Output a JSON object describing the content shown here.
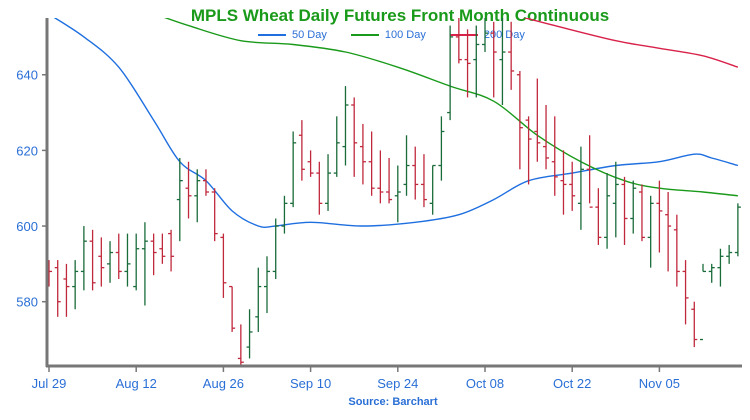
{
  "chart_data": {
    "type": "ohlc",
    "title": "MPLS Wheat Daily Futures Front Month Continuous",
    "source": "Source: Barchart",
    "ylim": [
      563,
      655
    ],
    "y_ticks": [
      580,
      600,
      620,
      640
    ],
    "x_tick_labels": [
      "Jul 29",
      "Aug 12",
      "Aug 26",
      "Sep 10",
      "Sep 24",
      "Oct 08",
      "Oct 22",
      "Nov 05"
    ],
    "x_tick_bar_index": [
      0,
      10,
      20,
      30,
      40,
      50,
      60,
      70
    ],
    "colors": {
      "up": "#1a6b3a",
      "down": "#c0283c",
      "ma50": "#1f6fe0",
      "ma100": "#1a9a1a",
      "ma200": "#d8224a",
      "axis": "#777777",
      "label": "#2a6fd6",
      "title": "#1a9a1a"
    },
    "legend": [
      {
        "name": "50 Day",
        "key": "ma50"
      },
      {
        "name": "100 Day",
        "key": "ma100"
      },
      {
        "name": "200 Day",
        "key": "ma200"
      }
    ],
    "bars": [
      [
        589,
        591,
        584,
        588
      ],
      [
        589,
        591,
        576,
        580
      ],
      [
        586,
        590,
        576,
        584
      ],
      [
        584,
        591,
        578,
        588
      ],
      [
        588,
        600,
        583,
        596
      ],
      [
        596,
        599,
        583,
        585
      ],
      [
        592,
        597,
        584,
        589
      ],
      [
        590,
        596,
        585,
        593
      ],
      [
        593,
        598,
        586,
        588
      ],
      [
        588,
        598,
        584,
        590
      ],
      [
        584,
        598,
        583,
        594
      ],
      [
        594,
        601,
        579,
        596
      ],
      [
        596,
        598,
        587,
        593
      ],
      [
        594,
        598,
        590,
        592
      ],
      [
        598,
        599,
        588,
        592
      ],
      [
        607,
        618,
        596,
        612
      ],
      [
        610,
        617,
        602,
        608
      ],
      [
        608,
        615,
        601,
        612
      ],
      [
        612,
        615,
        608,
        609
      ],
      [
        609,
        610,
        596,
        598
      ],
      [
        597,
        598,
        581,
        585
      ],
      [
        584,
        584,
        572,
        573
      ],
      [
        565,
        574,
        563,
        564
      ],
      [
        568,
        578,
        565,
        572
      ],
      [
        576,
        589,
        572,
        584
      ],
      [
        584,
        592,
        577,
        588
      ],
      [
        588,
        602,
        586,
        600
      ],
      [
        600,
        608,
        598,
        606
      ],
      [
        606,
        625,
        605,
        622
      ],
      [
        624,
        628,
        612,
        615
      ],
      [
        617,
        620,
        613,
        614
      ],
      [
        614,
        617,
        603,
        606
      ],
      [
        606,
        619,
        604,
        614
      ],
      [
        614,
        629,
        613,
        622
      ],
      [
        621,
        637,
        616,
        632
      ],
      [
        632,
        634,
        613,
        622
      ],
      [
        621,
        627,
        611,
        617
      ],
      [
        617,
        625,
        608,
        610
      ],
      [
        610,
        620,
        606,
        609
      ],
      [
        609,
        618,
        606,
        607
      ],
      [
        608,
        616,
        601,
        609
      ],
      [
        611,
        624,
        608,
        616
      ],
      [
        616,
        621,
        607,
        611
      ],
      [
        611,
        619,
        605,
        607
      ],
      [
        606,
        616,
        603,
        616
      ],
      [
        616,
        629,
        612,
        625
      ],
      [
        630,
        653,
        628,
        650
      ],
      [
        650,
        655,
        643,
        644
      ],
      [
        644,
        652,
        634,
        643
      ],
      [
        644,
        653,
        634,
        648
      ],
      [
        648,
        655,
        646,
        651
      ],
      [
        651,
        654,
        634,
        646
      ],
      [
        644,
        657,
        632,
        646
      ],
      [
        646,
        654,
        636,
        641
      ],
      [
        640,
        641,
        615,
        626
      ],
      [
        628,
        629,
        611,
        623
      ],
      [
        625,
        639,
        617,
        622
      ],
      [
        621,
        632,
        615,
        618
      ],
      [
        617,
        629,
        608,
        613
      ],
      [
        612,
        620,
        603,
        611
      ],
      [
        611,
        617,
        604,
        608
      ],
      [
        606,
        621,
        599,
        615
      ],
      [
        615,
        624,
        606,
        605
      ],
      [
        605,
        610,
        595,
        597
      ],
      [
        597,
        614,
        594,
        608
      ],
      [
        606,
        617,
        597,
        611
      ],
      [
        611,
        613,
        595,
        602
      ],
      [
        602,
        612,
        598,
        610
      ],
      [
        609,
        611,
        596,
        597
      ],
      [
        597,
        608,
        589,
        606
      ],
      [
        606,
        612,
        593,
        604
      ],
      [
        603,
        609,
        588,
        600
      ],
      [
        599,
        603,
        584,
        588
      ],
      [
        588,
        591,
        574,
        581
      ],
      [
        578,
        580,
        568,
        570
      ],
      [
        570,
        590,
        588,
        588
      ],
      [
        588,
        590,
        585,
        589
      ],
      [
        589,
        594,
        584,
        592
      ],
      [
        592,
        595,
        590,
        593
      ],
      [
        593,
        606,
        592,
        605
      ]
    ],
    "ma50": [
      [
        0,
        656
      ],
      [
        4,
        650
      ],
      [
        8,
        642
      ],
      [
        12,
        628
      ],
      [
        15,
        617
      ],
      [
        18,
        612
      ],
      [
        21,
        604
      ],
      [
        24,
        600
      ],
      [
        26,
        600
      ],
      [
        30,
        601
      ],
      [
        36,
        600
      ],
      [
        42,
        601
      ],
      [
        47,
        603
      ],
      [
        51,
        607
      ],
      [
        55,
        612
      ],
      [
        60,
        614
      ],
      [
        65,
        616
      ],
      [
        70,
        617
      ],
      [
        74,
        619
      ],
      [
        76,
        618
      ],
      [
        79,
        616
      ]
    ],
    "ma100": [
      [
        11,
        657
      ],
      [
        16,
        653
      ],
      [
        22,
        649
      ],
      [
        28,
        648
      ],
      [
        34,
        646
      ],
      [
        40,
        642
      ],
      [
        46,
        637
      ],
      [
        51,
        633
      ],
      [
        56,
        624
      ],
      [
        61,
        617
      ],
      [
        66,
        612
      ],
      [
        70,
        610
      ],
      [
        75,
        609
      ],
      [
        79,
        608
      ]
    ],
    "ma200": [
      [
        53,
        656
      ],
      [
        58,
        653
      ],
      [
        65,
        649
      ],
      [
        70,
        647
      ],
      [
        75,
        645
      ],
      [
        79,
        642
      ]
    ]
  }
}
